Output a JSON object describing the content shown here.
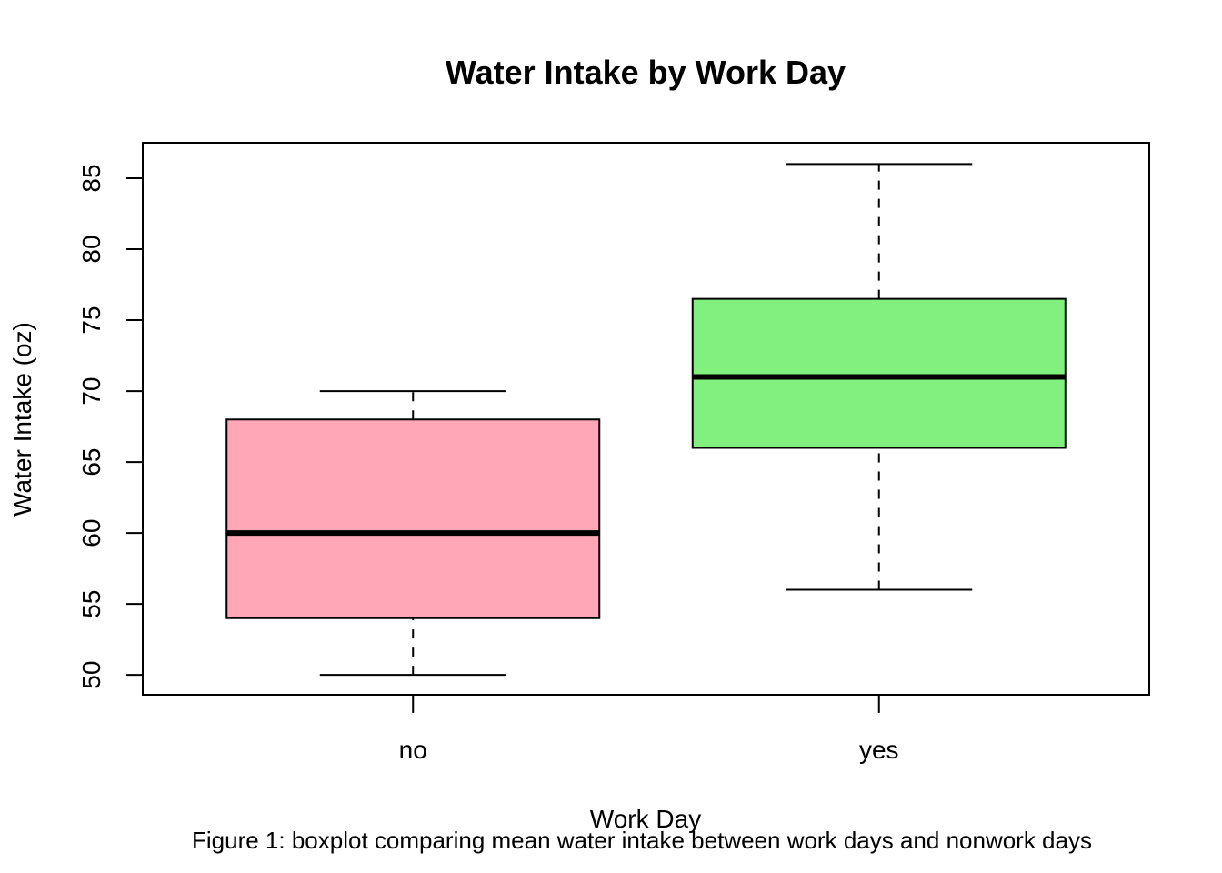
{
  "chart_data": {
    "type": "boxplot",
    "title": "Water Intake by Work Day",
    "xlabel": "Work Day",
    "ylabel": "Water Intake (oz)",
    "caption": "Figure 1: boxplot comparing mean water intake between work days and nonwork days",
    "categories": [
      "no",
      "yes"
    ],
    "boxes": [
      {
        "category": "no",
        "min": 50,
        "q1": 54,
        "median": 60,
        "q3": 68,
        "max": 70,
        "color": "#FFA7B6"
      },
      {
        "category": "yes",
        "min": 56,
        "q1": 66,
        "median": 71,
        "q3": 76.5,
        "max": 86,
        "color": "#82F07E"
      }
    ],
    "yticks": [
      50,
      55,
      60,
      65,
      70,
      75,
      80,
      85
    ],
    "ytick_labels": [
      "50",
      "55",
      "60",
      "65",
      "70",
      "75",
      "80",
      "85"
    ],
    "ylim": [
      48.6,
      87.5
    ],
    "grid": false,
    "legend": false
  }
}
